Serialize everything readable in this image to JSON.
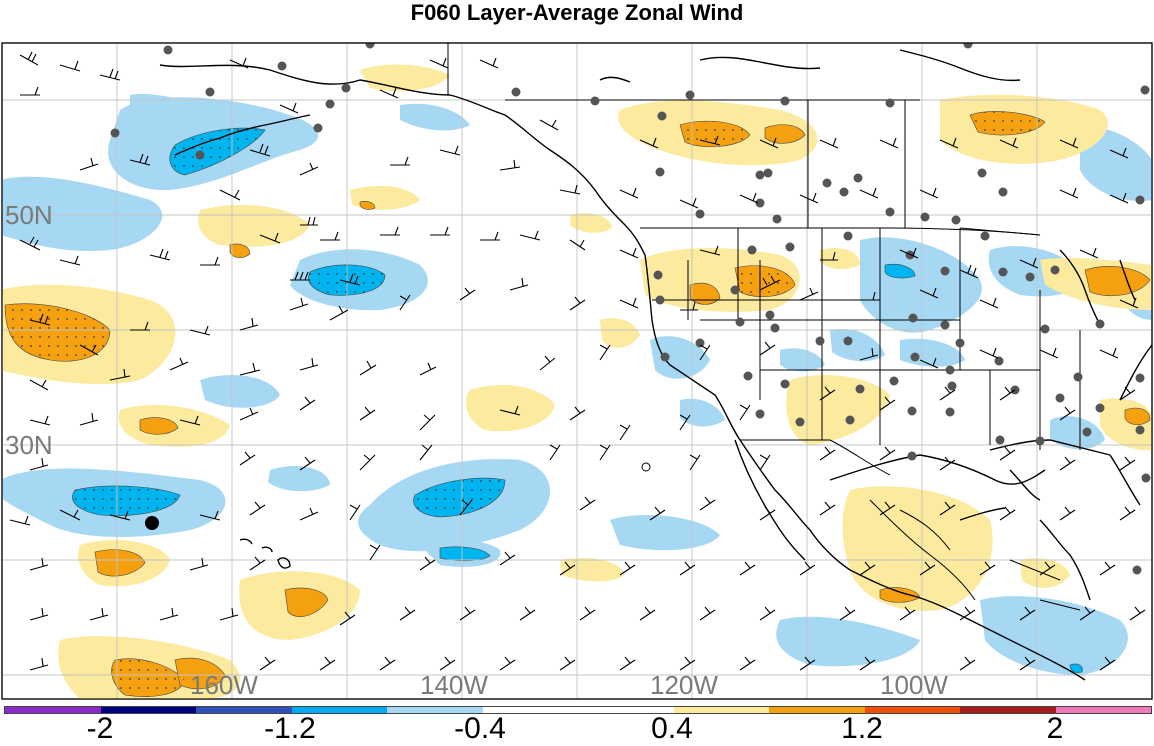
{
  "title": "F060 Layer-Average Zonal Wind",
  "lat_labels": [
    "50N",
    "30N"
  ],
  "lon_labels": [
    "160W",
    "140W",
    "120W",
    "100W"
  ],
  "colorbar": {
    "colors": [
      "#8a2cc7",
      "#00007f",
      "#2f50b9",
      "#00aaf0",
      "#a6d8f3",
      "#ffffff",
      "#ffffff",
      "#fcea9e",
      "#f5a00f",
      "#f34e08",
      "#a51c1c",
      "#ef7ab8"
    ],
    "labels": [
      "-2",
      "-1.2",
      "-0.4",
      "0.4",
      "1.2",
      "2"
    ]
  },
  "map_colors": {
    "light_blue": "#a6d8f3",
    "blue": "#00b4ef",
    "light_yellow": "#fcea9e",
    "orange": "#f5a00f",
    "grid": "#bdbdbd",
    "coast": "#000000",
    "station": "#555555"
  }
}
